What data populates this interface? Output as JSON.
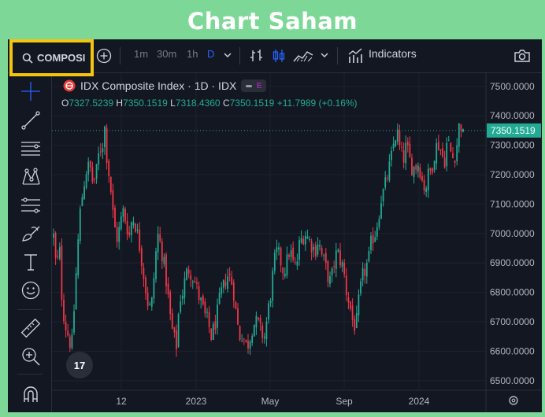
{
  "page_title": "Chart Saham",
  "toolbar": {
    "symbol_search": "COMPOSI",
    "intervals": [
      "1m",
      "30m",
      "1h",
      "D"
    ],
    "active_interval": "D",
    "indicators_label": "Indicators"
  },
  "legend": {
    "title": "IDX Composite Index · 1D · IDX",
    "badge": "E",
    "open_label": "O",
    "open": "7327.5239",
    "high_label": "H",
    "high": "7350.1519",
    "low_label": "L",
    "low": "7318.4360",
    "close_label": "C",
    "close": "7350.1519",
    "change": "+11.7989 (+0.16%)"
  },
  "logo_text": "17",
  "colors": {
    "up": "#22ab94",
    "down": "#f23645",
    "accent": "#2962ff",
    "highlight": "#f5c40f",
    "page_bg": "#7dd897"
  },
  "icons": {
    "left_toolbar": [
      "crosshair-icon",
      "trend-line-icon",
      "horizontal-lines-icon",
      "pattern-icon",
      "fib-icon",
      "brush-icon",
      "text-icon",
      "emoji-icon",
      "ruler-icon",
      "zoom-icon",
      "magnet-icon"
    ]
  },
  "chart_data": {
    "type": "candlestick",
    "title": "IDX Composite Index",
    "last_price": 7350.1519,
    "last_price_label": "7350.1519",
    "y_ticks": [
      "7500.0000",
      "7400.0000",
      "7300.0000",
      "7200.0000",
      "7100.0000",
      "7000.0000",
      "6900.0000",
      "6800.0000",
      "6700.0000",
      "6600.0000",
      "6500.0000"
    ],
    "x_ticks": [
      "12",
      "2023",
      "May",
      "Sep",
      "2024"
    ],
    "ylim": [
      6470,
      7545
    ],
    "close_path": [
      [
        0,
        7050
      ],
      [
        3,
        6960
      ],
      [
        6,
        6860
      ],
      [
        9,
        6980
      ],
      [
        13,
        6760
      ],
      [
        17,
        6690
      ],
      [
        21,
        6650
      ],
      [
        25,
        6610
      ],
      [
        28,
        6740
      ],
      [
        32,
        6930
      ],
      [
        36,
        7080
      ],
      [
        40,
        7160
      ],
      [
        44,
        7220
      ],
      [
        48,
        7230
      ],
      [
        52,
        7170
      ],
      [
        56,
        7200
      ],
      [
        60,
        7280
      ],
      [
        64,
        7300
      ],
      [
        67,
        7360
      ],
      [
        70,
        7250
      ],
      [
        74,
        7170
      ],
      [
        78,
        7050
      ],
      [
        82,
        6980
      ],
      [
        86,
        7020
      ],
      [
        90,
        7080
      ],
      [
        94,
        7040
      ],
      [
        98,
        6990
      ],
      [
        102,
        7060
      ],
      [
        106,
        7030
      ],
      [
        110,
        6980
      ],
      [
        114,
        6910
      ],
      [
        118,
        6830
      ],
      [
        122,
        6760
      ],
      [
        126,
        6740
      ],
      [
        130,
        6870
      ],
      [
        134,
        7000
      ],
      [
        138,
        6960
      ],
      [
        142,
        6900
      ],
      [
        146,
        6820
      ],
      [
        150,
        6720
      ],
      [
        154,
        6650
      ],
      [
        158,
        6620
      ],
      [
        162,
        6780
      ],
      [
        166,
        6800
      ],
      [
        170,
        6860
      ],
      [
        174,
        6880
      ],
      [
        178,
        6860
      ],
      [
        182,
        6830
      ],
      [
        186,
        6790
      ],
      [
        190,
        6760
      ],
      [
        194,
        6720
      ],
      [
        198,
        6700
      ],
      [
        202,
        6650
      ],
      [
        206,
        6680
      ],
      [
        210,
        6730
      ],
      [
        214,
        6790
      ],
      [
        218,
        6820
      ],
      [
        222,
        6860
      ],
      [
        226,
        6850
      ],
      [
        230,
        6820
      ],
      [
        234,
        6720
      ],
      [
        238,
        6650
      ],
      [
        242,
        6660
      ],
      [
        246,
        6620
      ],
      [
        250,
        6630
      ],
      [
        254,
        6680
      ],
      [
        258,
        6700
      ],
      [
        262,
        6690
      ],
      [
        266,
        6660
      ],
      [
        270,
        6650
      ],
      [
        274,
        6730
      ],
      [
        278,
        6800
      ],
      [
        282,
        6900
      ],
      [
        286,
        6940
      ],
      [
        290,
        6910
      ],
      [
        294,
        6870
      ],
      [
        298,
        6900
      ],
      [
        302,
        6950
      ],
      [
        306,
        6900
      ],
      [
        310,
        6880
      ],
      [
        314,
        6960
      ],
      [
        318,
        6990
      ],
      [
        322,
        7000
      ],
      [
        326,
        6980
      ],
      [
        330,
        6960
      ],
      [
        334,
        6940
      ],
      [
        338,
        6980
      ],
      [
        342,
        6930
      ],
      [
        346,
        6900
      ],
      [
        350,
        6860
      ],
      [
        354,
        6830
      ],
      [
        358,
        6900
      ],
      [
        362,
        6940
      ],
      [
        366,
        6910
      ],
      [
        370,
        6880
      ],
      [
        374,
        6800
      ],
      [
        378,
        6760
      ],
      [
        382,
        6700
      ],
      [
        386,
        6680
      ],
      [
        390,
        6780
      ],
      [
        394,
        6850
      ],
      [
        398,
        6880
      ],
      [
        402,
        6910
      ],
      [
        406,
        6980
      ],
      [
        410,
        7000
      ],
      [
        414,
        7050
      ],
      [
        418,
        7120
      ],
      [
        422,
        7150
      ],
      [
        426,
        7200
      ],
      [
        430,
        7240
      ],
      [
        434,
        7310
      ],
      [
        438,
        7350
      ],
      [
        442,
        7280
      ],
      [
        446,
        7250
      ],
      [
        450,
        7300
      ],
      [
        454,
        7250
      ],
      [
        458,
        7220
      ],
      [
        462,
        7230
      ],
      [
        466,
        7240
      ],
      [
        470,
        7180
      ],
      [
        474,
        7150
      ],
      [
        478,
        7200
      ],
      [
        482,
        7220
      ],
      [
        486,
        7280
      ],
      [
        490,
        7310
      ],
      [
        494,
        7280
      ],
      [
        498,
        7240
      ],
      [
        502,
        7320
      ],
      [
        506,
        7280
      ],
      [
        510,
        7250
      ],
      [
        514,
        7300
      ],
      [
        518,
        7390
      ],
      [
        522,
        7330
      ],
      [
        526,
        7350
      ]
    ]
  }
}
